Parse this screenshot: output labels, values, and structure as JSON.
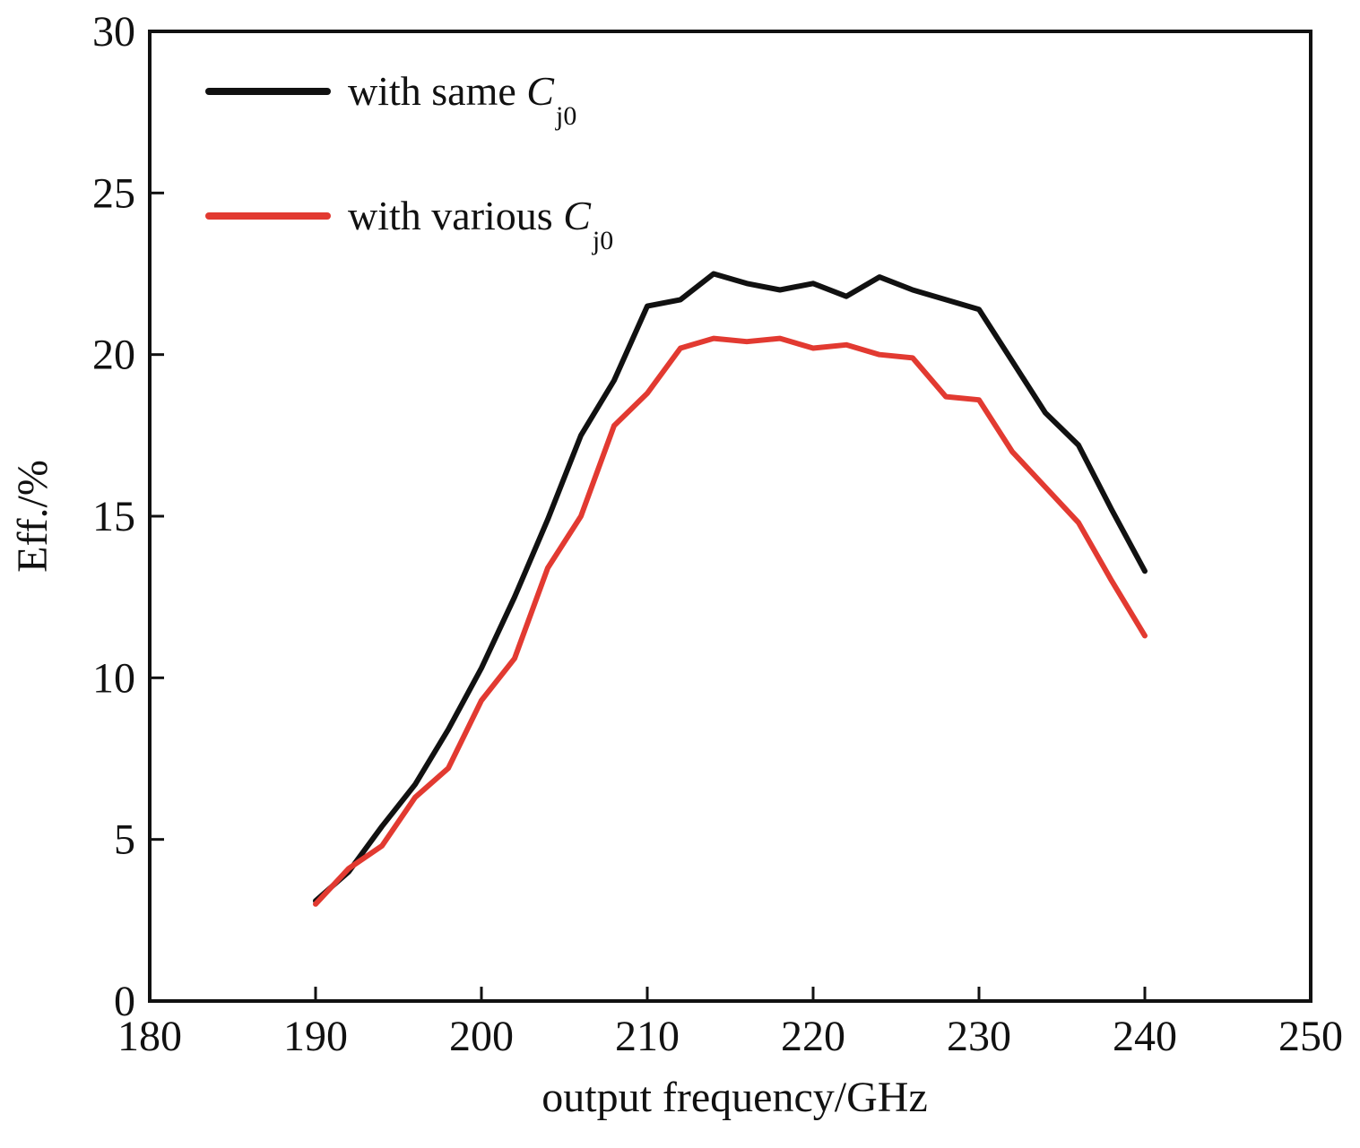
{
  "chart_data": {
    "type": "line",
    "title": "",
    "xlabel": "output frequency/GHz",
    "ylabel": "Eff./%",
    "xlim": [
      180,
      250
    ],
    "ylim": [
      0,
      30
    ],
    "x_ticks": [
      180,
      190,
      200,
      210,
      220,
      230,
      240,
      250
    ],
    "y_ticks": [
      0,
      5,
      10,
      15,
      20,
      25,
      30
    ],
    "grid": false,
    "legend_position": "top-left",
    "series": [
      {
        "name": "with same C",
        "name_main": "with same ",
        "name_symbol": "C",
        "name_subscript": "j0",
        "color": "#111111",
        "x": [
          190,
          192,
          194,
          196,
          198,
          200,
          202,
          204,
          206,
          208,
          210,
          212,
          214,
          216,
          218,
          220,
          222,
          224,
          226,
          228,
          230,
          232,
          234,
          236,
          238,
          240
        ],
        "y": [
          3.1,
          4.0,
          5.4,
          6.7,
          8.4,
          10.3,
          12.5,
          14.9,
          17.5,
          19.2,
          21.5,
          21.7,
          22.5,
          22.2,
          22.0,
          22.2,
          21.8,
          22.4,
          22.0,
          21.7,
          21.4,
          19.8,
          18.2,
          17.2,
          15.2,
          13.3
        ]
      },
      {
        "name": "with various C",
        "name_main": "with various ",
        "name_symbol": "C",
        "name_subscript": "j0",
        "color": "#e23a31",
        "x": [
          190,
          192,
          194,
          196,
          198,
          200,
          202,
          204,
          206,
          208,
          210,
          212,
          214,
          216,
          218,
          220,
          222,
          224,
          226,
          228,
          230,
          232,
          234,
          236,
          238,
          240
        ],
        "y": [
          3.0,
          4.1,
          4.8,
          6.3,
          7.2,
          9.3,
          10.6,
          13.4,
          15.0,
          17.8,
          18.8,
          20.2,
          20.5,
          20.4,
          20.5,
          20.2,
          20.3,
          20.0,
          19.9,
          18.7,
          18.6,
          17.0,
          15.9,
          14.8,
          13.0,
          11.3
        ]
      }
    ]
  }
}
